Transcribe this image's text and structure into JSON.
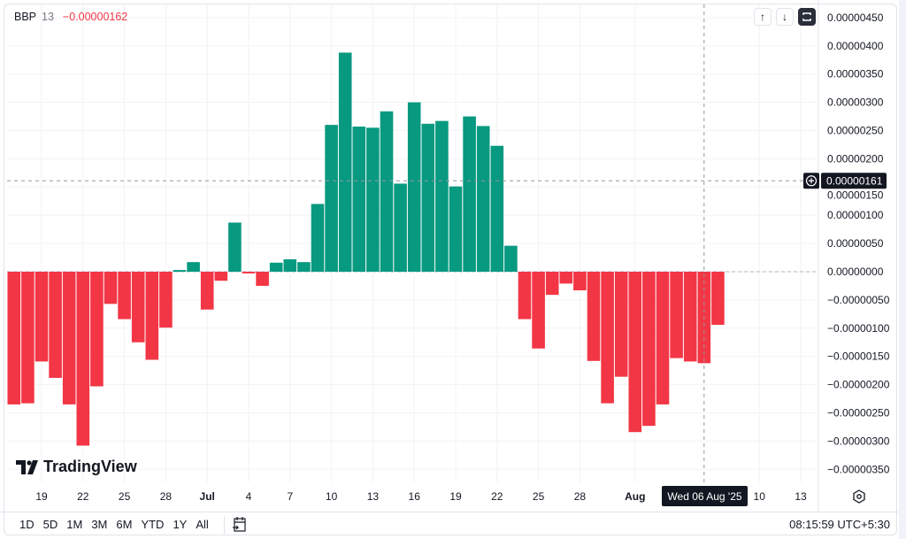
{
  "legend": {
    "symbol": "BBP",
    "length": "13",
    "value": "−0.00000162"
  },
  "colors": {
    "positive": "#089981",
    "negative": "#F23645",
    "grid": "#F2F3F5",
    "crosshair": "#9598A1",
    "label_bg": "#131722"
  },
  "buttons": {
    "scroll_up": "↑",
    "scroll_down": "↓"
  },
  "logo_text": "TradingView",
  "crosshair": {
    "price_label": "0.00000161",
    "price": 1.61e-06,
    "date_label": "Wed 06 Aug '25",
    "date": "2025-08-06"
  },
  "toolbar": {
    "ranges": [
      "1D",
      "5D",
      "1M",
      "3M",
      "6M",
      "YTD",
      "1Y",
      "All"
    ],
    "clock": "08:15:59 UTC+5:30"
  },
  "chart_data": {
    "type": "bar",
    "title": "BBP 13",
    "start_date": "2025-06-17",
    "interval": "1 day",
    "ylim": [
      -3.8e-06,
      4.7e-06
    ],
    "grid": true,
    "values": [
      -2.35e-06,
      -2.33e-06,
      -1.59e-06,
      -1.88e-06,
      -2.35e-06,
      -3.08e-06,
      -2.03e-06,
      -5.7e-07,
      -8.4e-07,
      -1.25e-06,
      -1.56e-06,
      -9.9e-07,
      3e-08,
      1.7e-07,
      -6.7e-07,
      -1.6e-07,
      8.7e-07,
      -3e-08,
      -2.5e-07,
      1.6e-07,
      2.2e-07,
      1.7e-07,
      1.2e-06,
      2.6e-06,
      3.88e-06,
      2.57e-06,
      2.55e-06,
      2.84e-06,
      1.56e-06,
      3e-06,
      2.62e-06,
      2.67e-06,
      1.51e-06,
      2.75e-06,
      2.58e-06,
      2.23e-06,
      4.6e-07,
      -8.4e-07,
      -1.36e-06,
      -4.1e-07,
      -2.1e-07,
      -3.3e-07,
      -1.58e-06,
      -2.33e-06,
      -1.86e-06,
      -2.84e-06,
      -2.73e-06,
      -2.35e-06,
      -1.53e-06,
      -1.59e-06,
      -1.62e-06,
      -9.4e-07
    ],
    "y_ticks": [
      {
        "label": "0.00000450",
        "value": 4.5e-06
      },
      {
        "label": "0.00000400",
        "value": 4e-06
      },
      {
        "label": "0.00000350",
        "value": 3.5e-06
      },
      {
        "label": "0.00000300",
        "value": 3e-06
      },
      {
        "label": "0.00000250",
        "value": 2.5e-06
      },
      {
        "label": "0.00000200",
        "value": 2e-06
      },
      {
        "label": "0.00000150",
        "value": 1.5e-06
      },
      {
        "label": "0.00000100",
        "value": 1e-06
      },
      {
        "label": "0.00000050",
        "value": 5e-07
      },
      {
        "label": "0.00000000",
        "value": 0
      },
      {
        "label": "−0.00000050",
        "value": -5e-07
      },
      {
        "label": "−0.00000100",
        "value": -1e-06
      },
      {
        "label": "−0.00000150",
        "value": -1.5e-06
      },
      {
        "label": "−0.00000200",
        "value": -2e-06
      },
      {
        "label": "−0.00000250",
        "value": -2.5e-06
      },
      {
        "label": "−0.00000300",
        "value": -3e-06
      },
      {
        "label": "−0.00000350",
        "value": -3.5e-06
      }
    ],
    "x_ticks": [
      {
        "label": "19",
        "date": "2025-06-19"
      },
      {
        "label": "22",
        "date": "2025-06-22"
      },
      {
        "label": "25",
        "date": "2025-06-25"
      },
      {
        "label": "28",
        "date": "2025-06-28"
      },
      {
        "label": "Jul",
        "date": "2025-07-01",
        "bold": true
      },
      {
        "label": "4",
        "date": "2025-07-04"
      },
      {
        "label": "7",
        "date": "2025-07-07"
      },
      {
        "label": "10",
        "date": "2025-07-10"
      },
      {
        "label": "13",
        "date": "2025-07-13"
      },
      {
        "label": "16",
        "date": "2025-07-16"
      },
      {
        "label": "19",
        "date": "2025-07-19"
      },
      {
        "label": "22",
        "date": "2025-07-22"
      },
      {
        "label": "25",
        "date": "2025-07-25"
      },
      {
        "label": "28",
        "date": "2025-07-28"
      },
      {
        "label": "Aug",
        "date": "2025-08-01",
        "bold": true
      },
      {
        "label": "10",
        "date": "2025-08-10"
      },
      {
        "label": "13",
        "date": "2025-08-13"
      }
    ]
  }
}
